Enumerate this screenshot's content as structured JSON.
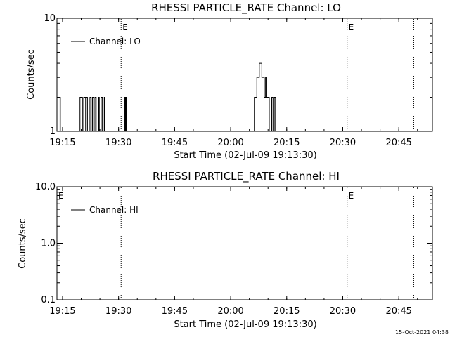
{
  "chart_data": [
    {
      "type": "line",
      "title": "RHESSI PARTICLE_RATE Channel: LO",
      "xlabel": "Start Time (02-Jul-09 19:13:30)",
      "ylabel": "Counts/sec",
      "y_scale": "log",
      "ylim": [
        1,
        10
      ],
      "xlim": [
        "19:13:30",
        "20:54:00"
      ],
      "x_tick_labels": [
        "19:15",
        "19:30",
        "19:45",
        "20:00",
        "20:15",
        "20:30",
        "20:45"
      ],
      "y_tick_labels": [
        "1",
        "10"
      ],
      "legend_label": "Channel: LO",
      "legend_position": "top-left",
      "event_markers": [
        {
          "time": "19:30:40",
          "label": "E"
        },
        {
          "time": "20:31:10",
          "label": "E"
        },
        {
          "time": "20:49:00",
          "label": ""
        }
      ],
      "series": [
        {
          "name": "Channel: LO",
          "x": [
            "19:14:00",
            "19:14:05",
            "19:14:10",
            "19:14:15",
            "19:14:20",
            "19:14:25",
            "19:14:30",
            "19:14:35",
            "19:14:40",
            "19:14:45",
            "19:19:30",
            "19:19:40",
            "19:19:50",
            "19:20:00",
            "19:20:20",
            "19:20:40",
            "19:21:10",
            "19:21:20",
            "19:21:30",
            "19:21:40",
            "19:22:00",
            "19:22:20",
            "19:22:40",
            "19:23:00",
            "19:23:10",
            "19:23:20",
            "19:23:40",
            "19:24:00",
            "19:24:30",
            "19:24:40",
            "19:24:50",
            "19:25:00",
            "19:25:20",
            "19:25:40",
            "19:26:00",
            "19:26:10",
            "19:26:20",
            "19:26:40",
            "19:27:00",
            "19:31:30",
            "19:31:40",
            "19:31:50",
            "19:32:00",
            "19:32:10",
            "20:06:00",
            "20:06:20",
            "20:06:40",
            "20:07:00",
            "20:07:20",
            "20:07:40",
            "20:08:00",
            "20:08:20",
            "20:08:40",
            "20:09:00",
            "20:09:20",
            "20:09:40",
            "20:10:00",
            "20:10:20",
            "20:10:40",
            "20:11:00",
            "20:11:20",
            "20:11:40",
            "20:12:00",
            "20:12:20",
            "20:12:40",
            "20:13:00"
          ],
          "values": [
            1,
            1,
            1,
            1,
            2,
            1,
            1,
            1,
            1,
            1,
            1,
            2,
            2,
            2,
            1,
            2,
            1,
            2,
            2,
            1,
            1,
            2,
            1,
            2,
            2,
            1,
            2,
            1,
            1,
            2,
            1,
            1,
            2,
            1,
            1,
            2,
            1,
            1,
            1,
            1,
            2,
            1,
            2,
            1,
            1,
            2,
            2,
            3,
            3,
            4,
            4,
            3,
            3,
            2,
            3,
            2,
            2,
            1,
            1,
            2,
            1,
            2,
            1,
            1,
            1,
            1
          ]
        }
      ]
    },
    {
      "type": "line",
      "title": "RHESSI PARTICLE_RATE Channel: HI",
      "xlabel": "Start Time (02-Jul-09 19:13:30)",
      "ylabel": "Counts/sec",
      "y_scale": "log",
      "ylim": [
        0.1,
        10.0
      ],
      "xlim": [
        "19:13:30",
        "20:54:00"
      ],
      "x_tick_labels": [
        "19:15",
        "19:30",
        "19:45",
        "20:00",
        "20:15",
        "20:30",
        "20:45"
      ],
      "y_tick_labels": [
        "0.1",
        "1.0",
        "10.0"
      ],
      "legend_label": "Channel: HI",
      "legend_position": "top-left",
      "event_markers": [
        {
          "time": "19:13:30",
          "label": "E"
        },
        {
          "time": "19:30:40",
          "label": ""
        },
        {
          "time": "20:31:10",
          "label": "E"
        },
        {
          "time": "20:49:00",
          "label": ""
        }
      ],
      "series": [
        {
          "name": "Channel: HI",
          "x": [],
          "values": []
        }
      ]
    }
  ],
  "footer": {
    "timestamp": "15-Oct-2021 04:38"
  }
}
